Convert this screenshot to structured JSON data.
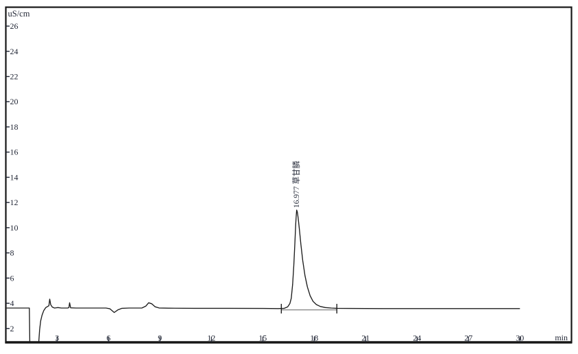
{
  "window": {
    "background": "#ffffff",
    "border_color": "#161616",
    "text_color": "#1f2433",
    "trace_color": "#1c1c1c",
    "integration_line_color": "#909090"
  },
  "chart_data": {
    "type": "line",
    "subtype": "ion-chromatogram",
    "title": "",
    "ylabel": "uS/cm",
    "xlabel": "min",
    "grid": false,
    "legend": "none",
    "xlim": [
      0,
      33
    ],
    "ylim": [
      0.9,
      27.5
    ],
    "x_ticks": [
      3,
      6,
      9,
      12,
      15,
      18,
      21,
      24,
      27,
      30
    ],
    "y_ticks": [
      2,
      4,
      6,
      8,
      10,
      12,
      14,
      16,
      18,
      20,
      22,
      24,
      26
    ],
    "baseline_uS_cm": 3.6,
    "injection_dip": {
      "start_min": 1.4,
      "end_min": 1.95
    },
    "peak": {
      "retention_time_label": "16.977",
      "compound_name": "草甘膦",
      "apex_min": 16.977,
      "apex_uS_cm": 11.4,
      "height_uS_cm": 7.8,
      "integration_start_min": 16.08,
      "integration_end_min": 19.32
    },
    "trace": [
      [
        0.05,
        3.62
      ],
      [
        0.6,
        3.62
      ],
      [
        1.3,
        3.62
      ],
      [
        1.38,
        3.62
      ],
      [
        1.42,
        -0.6
      ],
      [
        1.88,
        -0.6
      ],
      [
        1.93,
        0.9
      ],
      [
        1.98,
        1.9
      ],
      [
        2.04,
        2.6
      ],
      [
        2.12,
        3.05
      ],
      [
        2.22,
        3.42
      ],
      [
        2.34,
        3.66
      ],
      [
        2.44,
        3.74
      ],
      [
        2.52,
        3.8
      ],
      [
        2.57,
        4.33
      ],
      [
        2.63,
        3.88
      ],
      [
        2.72,
        3.7
      ],
      [
        2.85,
        3.62
      ],
      [
        3.05,
        3.66
      ],
      [
        3.25,
        3.62
      ],
      [
        3.62,
        3.62
      ],
      [
        3.69,
        3.66
      ],
      [
        3.73,
        4.04
      ],
      [
        3.79,
        3.64
      ],
      [
        4.1,
        3.62
      ],
      [
        5.0,
        3.62
      ],
      [
        5.85,
        3.62
      ],
      [
        6.08,
        3.56
      ],
      [
        6.33,
        3.27
      ],
      [
        6.55,
        3.48
      ],
      [
        6.78,
        3.6
      ],
      [
        7.2,
        3.62
      ],
      [
        7.95,
        3.63
      ],
      [
        8.18,
        3.78
      ],
      [
        8.34,
        4.04
      ],
      [
        8.52,
        3.96
      ],
      [
        8.72,
        3.72
      ],
      [
        8.95,
        3.63
      ],
      [
        9.5,
        3.61
      ],
      [
        11,
        3.6
      ],
      [
        13,
        3.6
      ],
      [
        15,
        3.59
      ],
      [
        15.9,
        3.58
      ],
      [
        16.25,
        3.6
      ],
      [
        16.45,
        3.72
      ],
      [
        16.58,
        3.98
      ],
      [
        16.66,
        4.4
      ],
      [
        16.74,
        5.5
      ],
      [
        16.81,
        7.0
      ],
      [
        16.87,
        8.8
      ],
      [
        16.92,
        10.3
      ],
      [
        16.95,
        11.0
      ],
      [
        16.977,
        11.4
      ],
      [
        17.01,
        11.25
      ],
      [
        17.06,
        10.8
      ],
      [
        17.13,
        9.9
      ],
      [
        17.22,
        8.7
      ],
      [
        17.33,
        7.4
      ],
      [
        17.46,
        6.2
      ],
      [
        17.6,
        5.3
      ],
      [
        17.76,
        4.6
      ],
      [
        17.93,
        4.15
      ],
      [
        18.12,
        3.9
      ],
      [
        18.35,
        3.75
      ],
      [
        18.65,
        3.66
      ],
      [
        19.0,
        3.62
      ],
      [
        19.32,
        3.6
      ],
      [
        20,
        3.59
      ],
      [
        22,
        3.58
      ],
      [
        24,
        3.58
      ],
      [
        27,
        3.58
      ],
      [
        30,
        3.58
      ]
    ]
  }
}
